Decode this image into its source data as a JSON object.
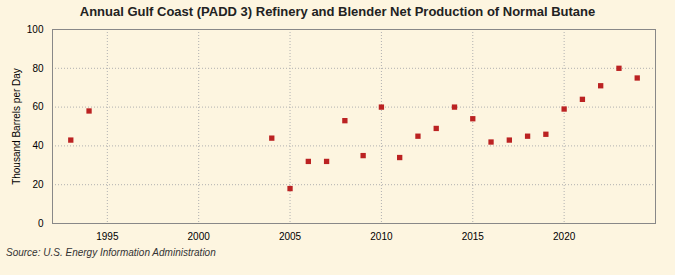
{
  "chart_data": {
    "type": "scatter",
    "title": "Annual Gulf Coast (PADD 3) Refinery and Blender Net Production of Normal Butane",
    "ylabel": "Thousand Barrels per Day",
    "source": "Source: U.S. Energy Information Administration",
    "x": [
      1993,
      1994,
      2004,
      2005,
      2006,
      2007,
      2008,
      2009,
      2010,
      2011,
      2012,
      2013,
      2014,
      2015,
      2016,
      2017,
      2018,
      2019,
      2020,
      2021,
      2022,
      2023,
      2024
    ],
    "values": [
      43,
      58,
      44,
      18,
      32,
      32,
      53,
      35,
      60,
      34,
      45,
      49,
      60,
      54,
      42,
      43,
      45,
      46,
      59,
      64,
      71,
      80,
      75
    ],
    "xlim": [
      1992.0,
      2025.0
    ],
    "xticks": [
      1995,
      2000,
      2005,
      2010,
      2015,
      2020
    ],
    "ylim": [
      0,
      100
    ],
    "yticks": [
      0,
      20,
      40,
      60,
      80,
      100
    ],
    "color": "#bb2222",
    "marker": "square",
    "grid": true
  }
}
